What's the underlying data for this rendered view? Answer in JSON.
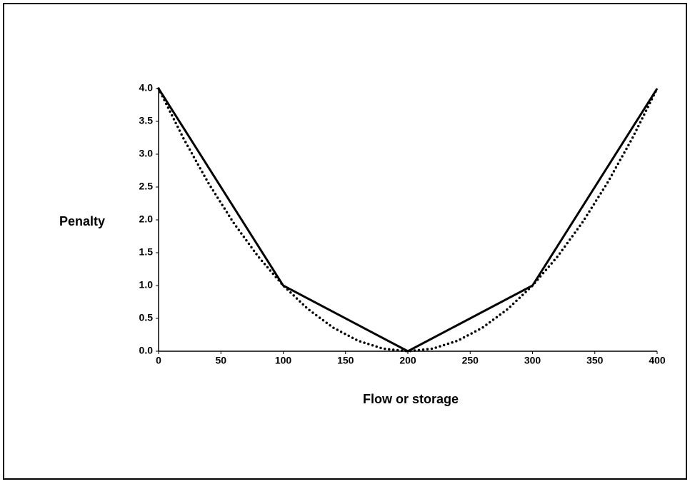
{
  "chart_data": {
    "type": "line",
    "xlabel": "Flow or storage",
    "ylabel": "Penalty",
    "xlim": [
      0,
      400
    ],
    "xticks": [
      0,
      50,
      100,
      150,
      200,
      250,
      300,
      350,
      400
    ],
    "ylim": [
      0,
      4
    ],
    "yticks": [
      {
        "value": 0,
        "label": "0.0"
      },
      {
        "value": 0.5,
        "label": "0.5"
      },
      {
        "value": 1,
        "label": "1.0"
      },
      {
        "value": 1.5,
        "label": "1.5"
      },
      {
        "value": 2,
        "label": "2.0"
      },
      {
        "value": 2.5,
        "label": "2.5"
      },
      {
        "value": 3,
        "label": "3.0"
      },
      {
        "value": 3.5,
        "label": "3.5"
      },
      {
        "value": 4,
        "label": "4.0"
      }
    ],
    "series": [
      {
        "color": "#000000",
        "style": "solid",
        "x": [
          0,
          100,
          200,
          300,
          400
        ],
        "values": [
          4,
          1,
          0,
          1,
          4
        ]
      },
      {
        "color": "#000000",
        "style": "dotted",
        "x": [
          0,
          20,
          40,
          60,
          80,
          100,
          120,
          140,
          160,
          180,
          200,
          220,
          240,
          260,
          280,
          300,
          320,
          340,
          360,
          380,
          400
        ],
        "values": [
          4,
          3.24,
          2.56,
          1.96,
          1.44,
          1,
          0.64,
          0.36,
          0.16,
          0.04,
          0,
          0.04,
          0.16,
          0.36,
          0.64,
          1,
          1.44,
          1.96,
          2.56,
          3.24,
          4
        ]
      }
    ]
  }
}
